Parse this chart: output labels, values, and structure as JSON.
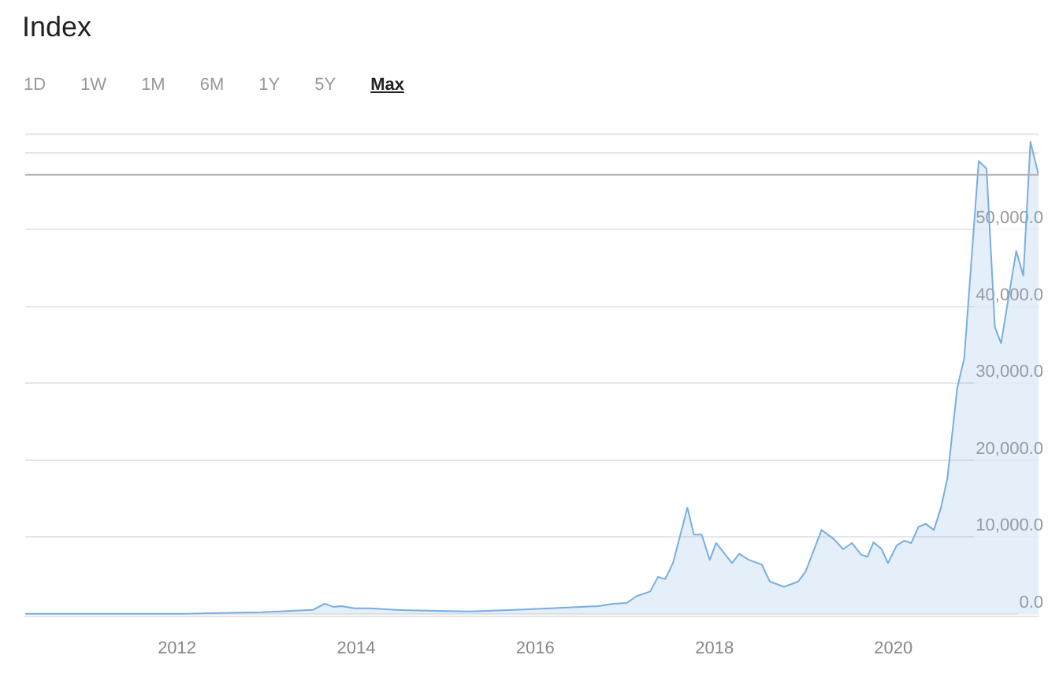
{
  "chart_data": {
    "type": "area",
    "title": "Index",
    "annotations": [
      "1D",
      "1W",
      "1M",
      "6M",
      "1Y",
      "5Y",
      "Max"
    ],
    "x": [
      "2010-04-22",
      "2012-01-22",
      "2012-12-10",
      "2013-07-08",
      "2013-08-25",
      "2013-10-01",
      "2013-11-03",
      "2013-12-24",
      "2014-02-28",
      "2014-06-14",
      "2014-10-20",
      "2015-04-06",
      "2015-10-08",
      "2016-03-03",
      "2016-09-13",
      "2016-11-14",
      "2017-01-08",
      "2017-02-18",
      "2017-04-14",
      "2017-05-16",
      "2017-06-14",
      "2017-07-16",
      "2017-09-13",
      "2017-10-09",
      "2017-11-10",
      "2017-12-13",
      "2018-01-08",
      "2018-03-14",
      "2018-04-12",
      "2018-05-22",
      "2018-07-13",
      "2018-08-15",
      "2018-10-12",
      "2018-12-09",
      "2019-01-08",
      "2019-03-14",
      "2019-05-04",
      "2019-06-10",
      "2019-07-16",
      "2019-08-22",
      "2019-09-17",
      "2019-10-12",
      "2019-11-14",
      "2019-12-10",
      "2020-01-15",
      "2020-02-14",
      "2020-03-14",
      "2020-04-12",
      "2020-05-12",
      "2020-06-14",
      "2020-07-13",
      "2020-08-08",
      "2020-09-17",
      "2020-10-16",
      "2020-12-14",
      "2021-01-15",
      "2021-02-18",
      "2021-03-15",
      "2021-05-16",
      "2021-06-14",
      "2021-07-13",
      "2021-08-15"
    ],
    "series": [
      {
        "color": "#7aaee0",
        "values": [
          0,
          0,
          200,
          500,
          1300,
          900,
          1000,
          700,
          700,
          500,
          400,
          300,
          500,
          700,
          1000,
          1300,
          1400,
          2300,
          2900,
          4800,
          4500,
          6600,
          13800,
          10300,
          10300,
          7000,
          9200,
          6600,
          7800,
          7000,
          6400,
          4200,
          3500,
          4200,
          5500,
          10900,
          9700,
          8400,
          9200,
          7700,
          7400,
          9300,
          8400,
          6600,
          8900,
          9500,
          9200,
          11300,
          11700,
          10900,
          13800,
          17600,
          29300,
          33300,
          58900,
          57900,
          37300,
          35200,
          47200,
          44000,
          61400,
          57100
        ]
      }
    ],
    "xlim": [
      "2010-04-22",
      "2021-08-15"
    ],
    "xticks": [
      {
        "value": "2012-01-01",
        "label": "2012"
      },
      {
        "value": "2014-01-01",
        "label": "2014"
      },
      {
        "value": "2016-01-01",
        "label": "2016"
      },
      {
        "value": "2018-01-01",
        "label": "2018"
      },
      {
        "value": "2020-01-01",
        "label": "2020"
      }
    ],
    "ylim": [
      -300,
      62500
    ],
    "yticks": [
      {
        "value": 0,
        "label": "0.0"
      },
      {
        "value": 10000,
        "label": "10,000.0"
      },
      {
        "value": 20000,
        "label": "20,000.0"
      },
      {
        "value": 30000,
        "label": "30,000.0"
      },
      {
        "value": 40000,
        "label": "40,000.0"
      },
      {
        "value": 50000,
        "label": "50,000.0"
      },
      {
        "value": 60000,
        "label": null
      }
    ],
    "ref_lines": [
      {
        "axis": "y",
        "value": 57100,
        "label": null,
        "color": "#b0b0b0"
      }
    ],
    "grid": "y",
    "legend": false,
    "marker": "none",
    "line_style": "solid"
  }
}
